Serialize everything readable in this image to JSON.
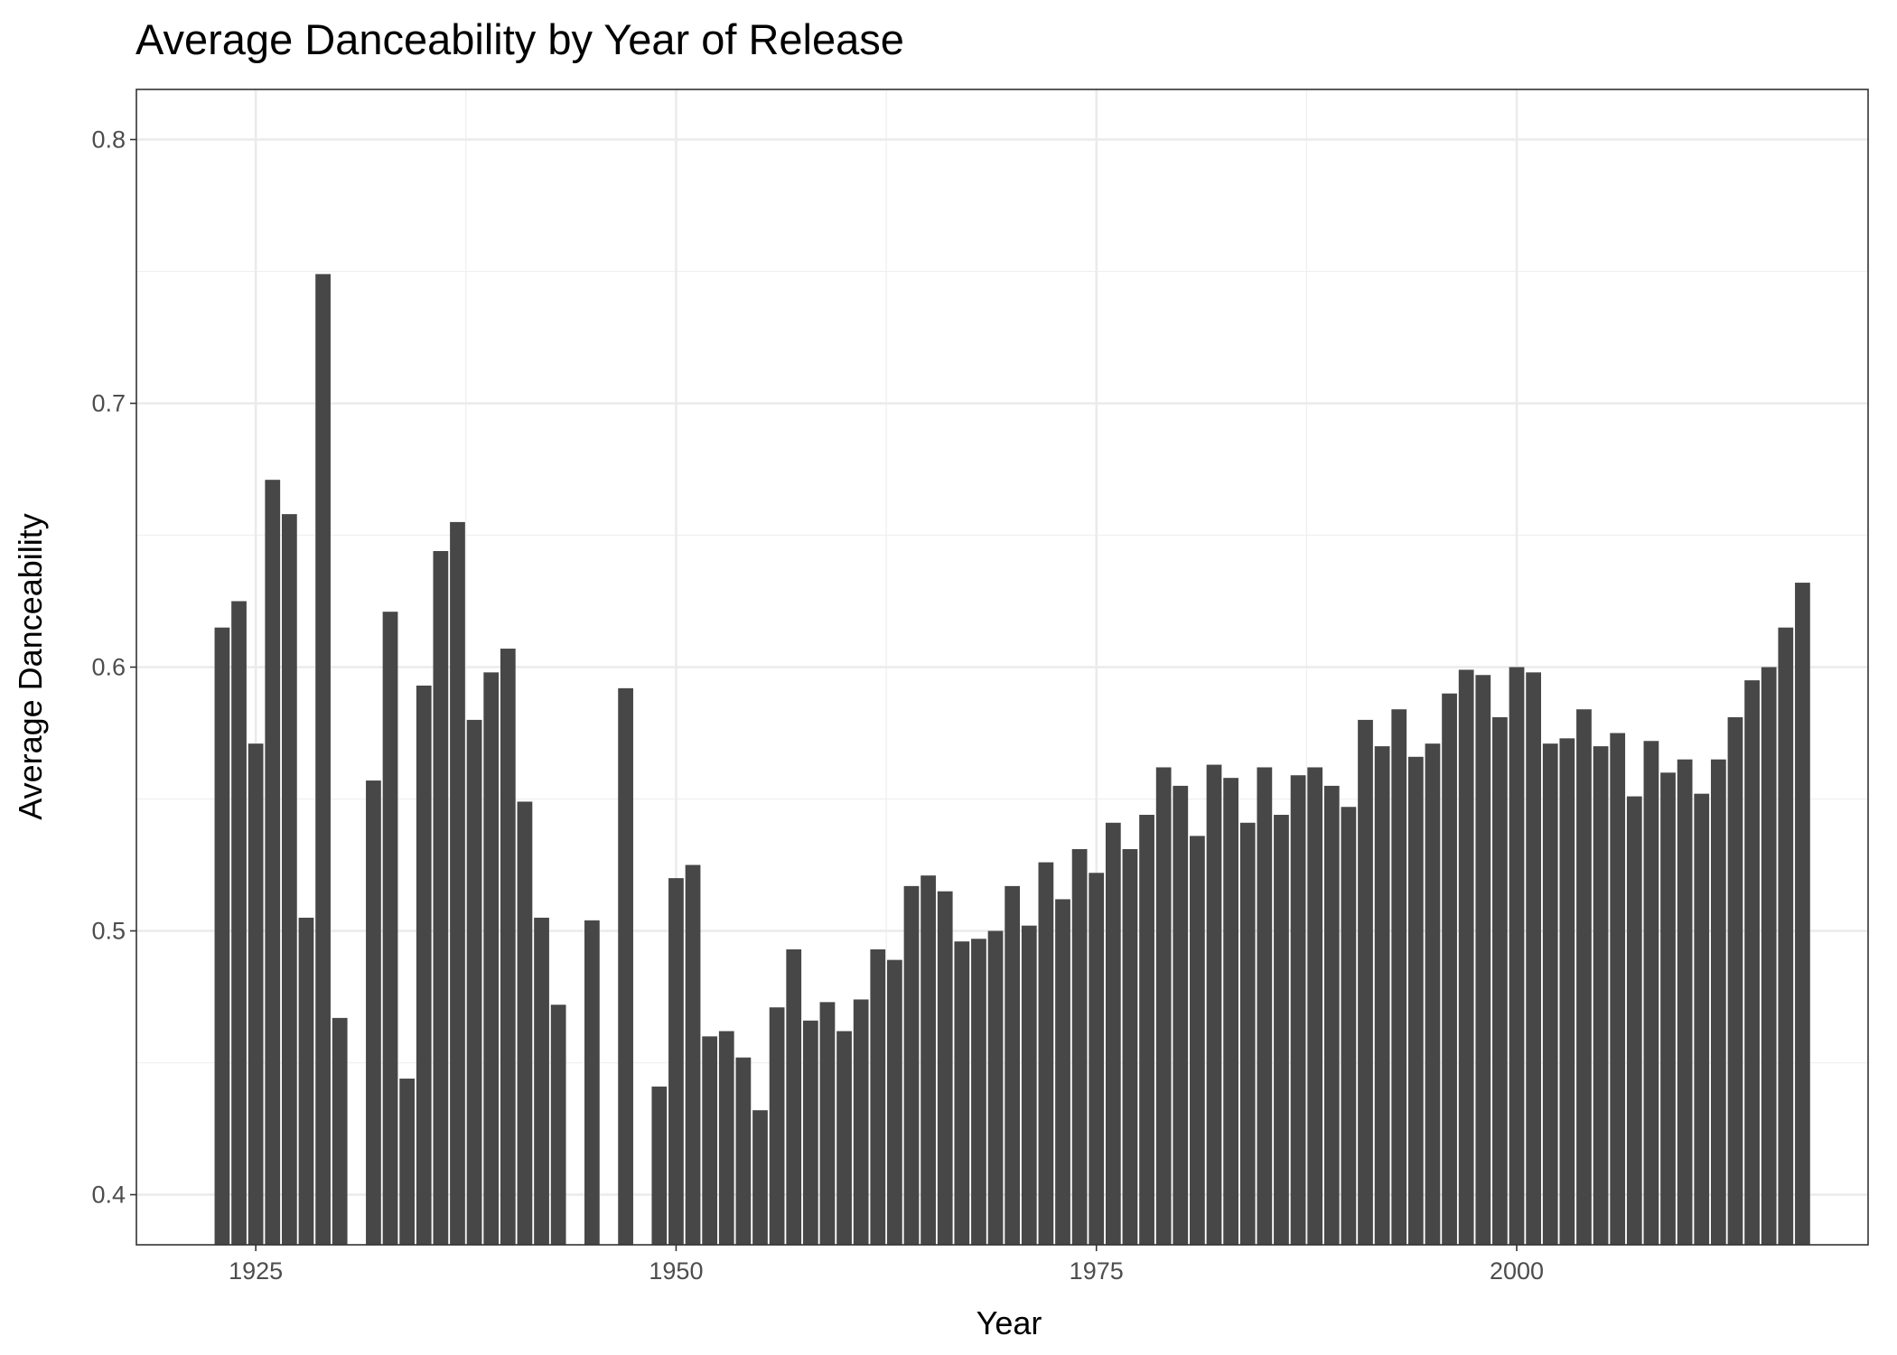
{
  "chart_data": {
    "type": "bar",
    "title": "Average Danceability by Year of Release",
    "x_label": "Year",
    "y_label": "Average Danceability",
    "x": [
      1923,
      1924,
      1925,
      1926,
      1927,
      1928,
      1929,
      1930,
      1932,
      1933,
      1934,
      1935,
      1936,
      1937,
      1938,
      1939,
      1940,
      1941,
      1942,
      1943,
      1945,
      1947,
      1949,
      1950,
      1951,
      1952,
      1953,
      1954,
      1955,
      1956,
      1957,
      1958,
      1959,
      1960,
      1961,
      1962,
      1963,
      1964,
      1965,
      1966,
      1967,
      1968,
      1969,
      1970,
      1971,
      1972,
      1973,
      1974,
      1975,
      1976,
      1977,
      1978,
      1979,
      1980,
      1981,
      1982,
      1983,
      1984,
      1985,
      1986,
      1987,
      1988,
      1989,
      1990,
      1991,
      1992,
      1993,
      1994,
      1995,
      1996,
      1997,
      1998,
      1999,
      2000,
      2001,
      2002,
      2003,
      2004,
      2005,
      2006,
      2007,
      2008,
      2009,
      2010,
      2011,
      2012,
      2013,
      2014,
      2015,
      2016,
      2017
    ],
    "values": [
      0.615,
      0.625,
      0.571,
      0.671,
      0.658,
      0.505,
      0.749,
      0.467,
      0.557,
      0.621,
      0.444,
      0.593,
      0.644,
      0.655,
      0.58,
      0.598,
      0.607,
      0.549,
      0.505,
      0.472,
      0.504,
      0.592,
      0.441,
      0.52,
      0.525,
      0.46,
      0.462,
      0.452,
      0.432,
      0.471,
      0.493,
      0.466,
      0.473,
      0.462,
      0.474,
      0.493,
      0.489,
      0.517,
      0.521,
      0.515,
      0.496,
      0.497,
      0.5,
      0.517,
      0.502,
      0.526,
      0.512,
      0.531,
      0.522,
      0.541,
      0.531,
      0.544,
      0.562,
      0.555,
      0.536,
      0.563,
      0.558,
      0.541,
      0.562,
      0.544,
      0.559,
      0.562,
      0.555,
      0.547,
      0.58,
      0.57,
      0.584,
      0.566,
      0.571,
      0.59,
      0.599,
      0.597,
      0.581,
      0.6,
      0.598,
      0.571,
      0.573,
      0.584,
      0.57,
      0.575,
      0.551,
      0.572,
      0.56,
      0.565,
      0.552,
      0.565,
      0.581,
      0.595,
      0.6,
      0.615,
      0.632
    ],
    "color": "#474747",
    "xlim": [
      1917.9,
      2020.9
    ],
    "xticks": [
      1925,
      1950,
      1975,
      2000
    ],
    "ylim": [
      0.381,
      0.819
    ],
    "yticks": [
      0.4,
      0.5,
      0.6,
      0.7,
      0.8
    ],
    "grid": true
  }
}
